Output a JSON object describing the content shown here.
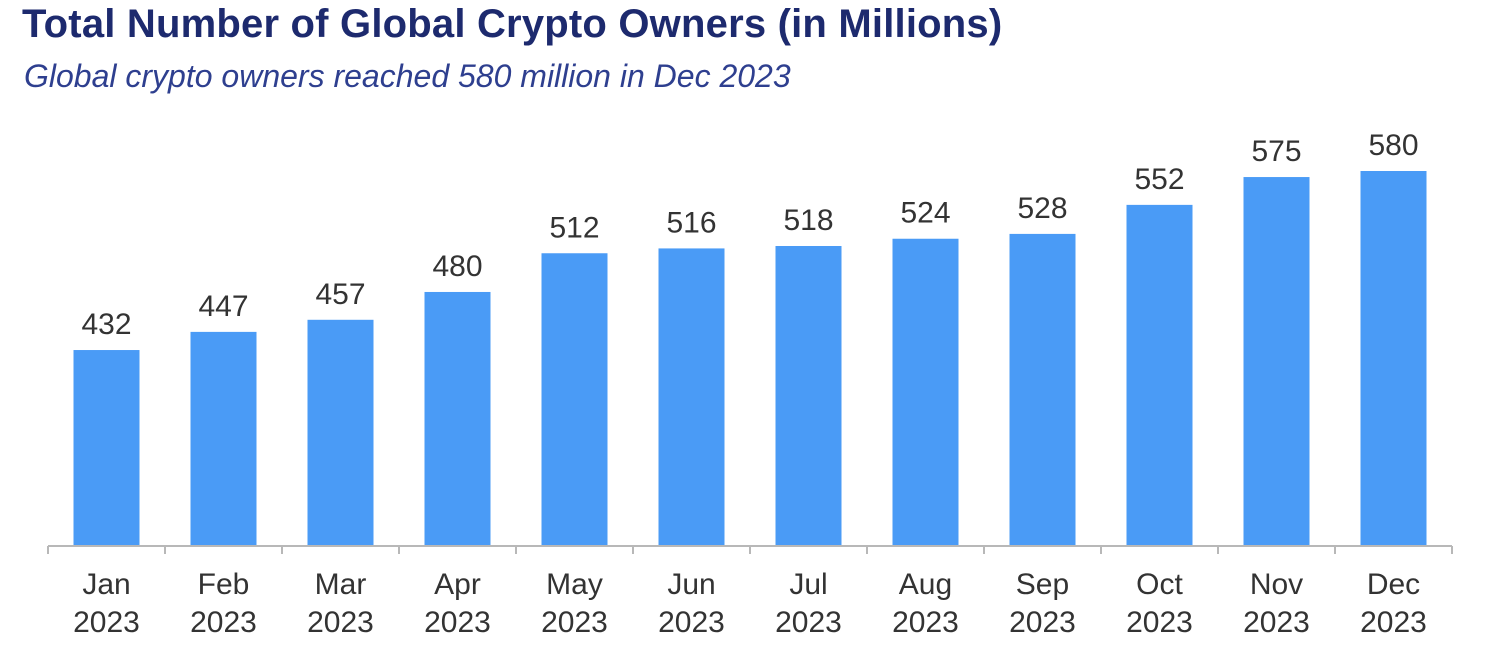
{
  "chart_data": {
    "type": "bar",
    "title": "Total Number of Global Crypto Owners (in Millions)",
    "subtitle": "Global crypto owners reached 580 million in Dec 2023",
    "xlabel": "",
    "ylabel": "",
    "categories": [
      [
        "Jan",
        "2023"
      ],
      [
        "Feb",
        "2023"
      ],
      [
        "Mar",
        "2023"
      ],
      [
        "Apr",
        "2023"
      ],
      [
        "May",
        "2023"
      ],
      [
        "Jun",
        "2023"
      ],
      [
        "Jul",
        "2023"
      ],
      [
        "Aug",
        "2023"
      ],
      [
        "Sep",
        "2023"
      ],
      [
        "Oct",
        "2023"
      ],
      [
        "Nov",
        "2023"
      ],
      [
        "Dec",
        "2023"
      ]
    ],
    "values": [
      432,
      447,
      457,
      480,
      512,
      516,
      518,
      524,
      528,
      552,
      575,
      580
    ],
    "ylim": [
      270,
      580
    ],
    "grid": false,
    "legend": "none",
    "bar_color": "#4a9bf6",
    "title_color": "#1d2a6e",
    "subtitle_color": "#2e3f8f"
  }
}
